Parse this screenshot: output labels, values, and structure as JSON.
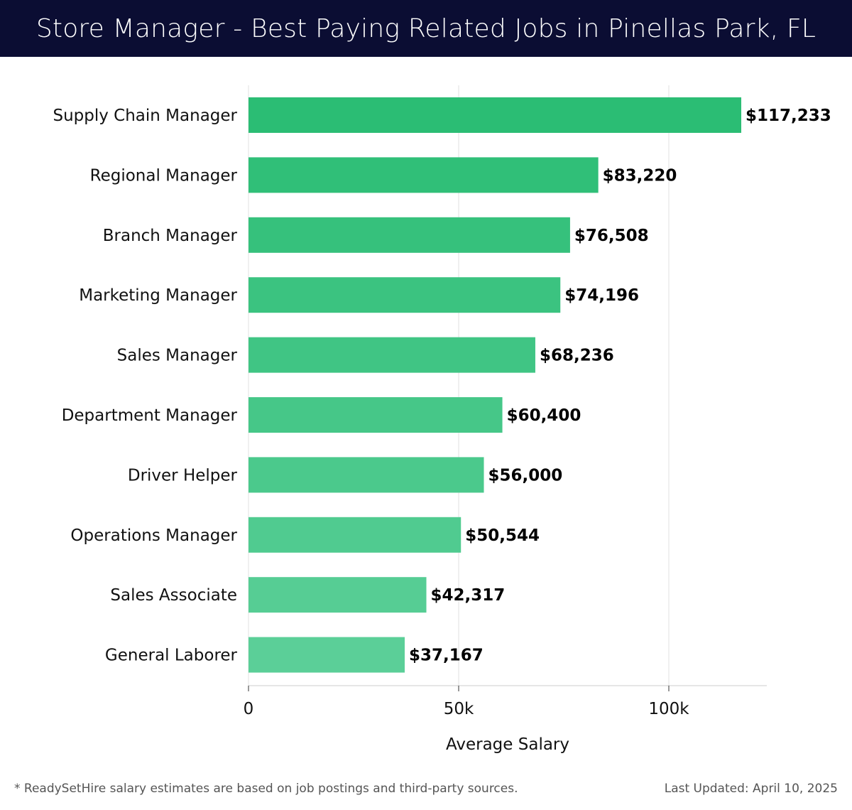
{
  "header": {
    "title": "Store Manager - Best Paying Related Jobs in Pinellas Park, FL"
  },
  "chart_data": {
    "type": "bar",
    "orientation": "horizontal",
    "title": "Store Manager - Best Paying Related Jobs in Pinellas Park, FL",
    "xlabel": "Average Salary",
    "ylabel": "",
    "categories": [
      "Supply Chain Manager",
      "Regional Manager",
      "Branch Manager",
      "Marketing Manager",
      "Sales Manager",
      "Department Manager",
      "Driver Helper",
      "Operations Manager",
      "Sales Associate",
      "General Laborer"
    ],
    "values": [
      117233,
      83220,
      76508,
      74196,
      68236,
      60400,
      56000,
      50544,
      42317,
      37167
    ],
    "value_labels": [
      "$117,233",
      "$83,220",
      "$76,508",
      "$74,196",
      "$68,236",
      "$60,400",
      "$56,000",
      "$50,544",
      "$42,317",
      "$37,167"
    ],
    "xticks": [
      0,
      50000,
      100000
    ],
    "xtick_labels": [
      "0",
      "50k",
      "100k"
    ],
    "xlim": [
      0,
      123500
    ],
    "grid": true,
    "colors": {
      "bar_top": "#2bbd74",
      "bar_bottom": "#5bcf98",
      "grid": "#e2e2e2",
      "axis": "#cccccc"
    }
  },
  "footer": {
    "note": "* ReadySetHire salary estimates are based on job postings and third-party sources.",
    "updated": "Last Updated: April 10, 2025"
  }
}
